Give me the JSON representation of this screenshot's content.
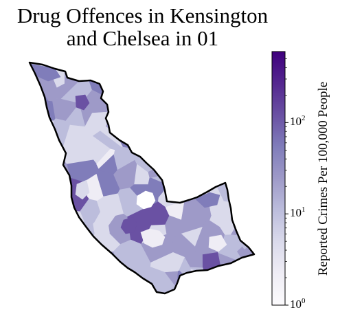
{
  "title_line1": "Drug Offences in Kensington",
  "title_line2": "and Chelsea in 01",
  "colorbar": {
    "label": "Reported Crimes Per 100,000 People",
    "scale": "log",
    "min": 1,
    "max": 600,
    "ticks": [
      {
        "base": "10",
        "exp": "2",
        "value": 100
      },
      {
        "base": "10",
        "exp": "1",
        "value": 10
      },
      {
        "base": "10",
        "exp": "0",
        "value": 1
      }
    ],
    "colors": [
      "#fcfbfd",
      "#efedf5",
      "#dadaeb",
      "#bcbddc",
      "#9e9ac8",
      "#807dba",
      "#6a51a3",
      "#54278f",
      "#3f007d"
    ]
  },
  "map": {
    "outline_color": "#000000",
    "no_data_color": "#ffffff"
  }
}
